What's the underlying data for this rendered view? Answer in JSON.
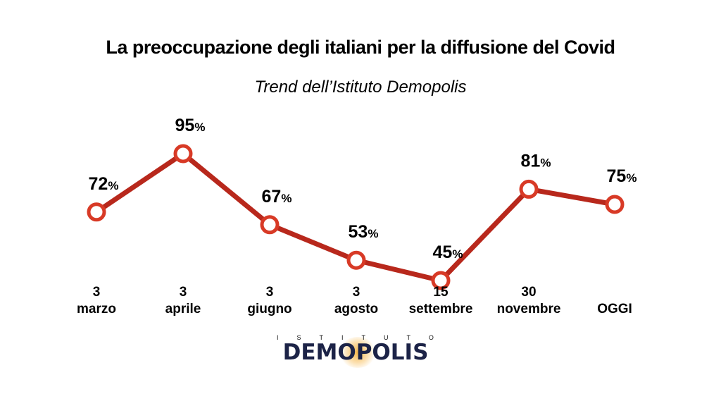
{
  "title": "La preoccupazione degli italiani per la diffusione del Covid",
  "subtitle": "Trend dell’Istituto Demopolis",
  "logo": {
    "top_text": "ISTITUTO",
    "main_text": "DEMOPOLIS"
  },
  "colors": {
    "line": "#b8281c",
    "marker_stroke": "#d83a26",
    "marker_fill": "#ffffff",
    "text": "#000000",
    "logo": "#1c2347"
  },
  "chart_data": {
    "type": "line",
    "categories": [
      [
        "3",
        "marzo"
      ],
      [
        "3",
        "aprile"
      ],
      [
        "3",
        "giugno"
      ],
      [
        "3",
        "agosto"
      ],
      [
        "15",
        "settembre"
      ],
      [
        "30",
        "novembre"
      ],
      [
        "OGGI"
      ]
    ],
    "values": [
      72,
      95,
      67,
      53,
      45,
      81,
      75
    ],
    "value_suffix": "%",
    "title": "La preoccupazione degli italiani per la diffusione del Covid",
    "subtitle": "Trend dell’Istituto Demopolis",
    "xlabel": "",
    "ylabel": "",
    "grid": false,
    "legend": "none"
  }
}
